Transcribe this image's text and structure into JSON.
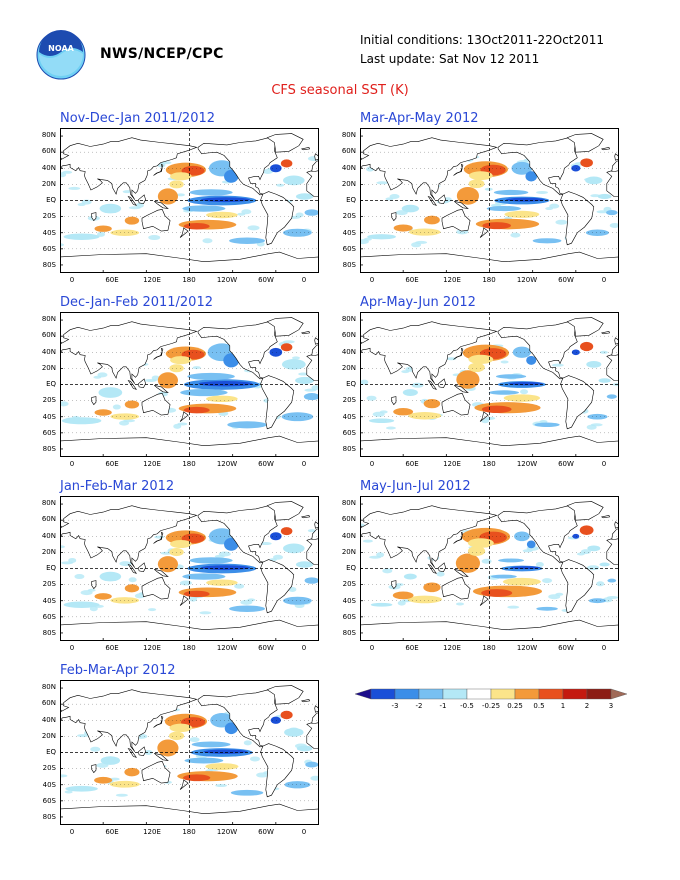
{
  "header": {
    "org": "NWS/NCEP/CPC",
    "initial_conditions": "Initial conditions: 13Oct2011-22Oct2011",
    "last_update": "Last update: Sat Nov 12 2011",
    "title": "CFS seasonal SST (K)",
    "logo_text": "NOAA"
  },
  "panels": [
    {
      "title": "Nov-Dec-Jan 2011/2012"
    },
    {
      "title": "Mar-Apr-May 2012"
    },
    {
      "title": "Dec-Jan-Feb 2011/2012"
    },
    {
      "title": "Apr-May-Jun 2012"
    },
    {
      "title": "Jan-Feb-Mar 2012"
    },
    {
      "title": "May-Jun-Jul 2012"
    },
    {
      "title": "Feb-Mar-Apr 2012"
    }
  ],
  "axes": {
    "lat_labels": [
      "80N",
      "60N",
      "40N",
      "20N",
      "EQ",
      "20S",
      "40S",
      "60S",
      "80S"
    ],
    "lon_labels": [
      "0",
      "60E",
      "120E",
      "180",
      "120W",
      "60W",
      "0"
    ]
  },
  "colorbar": {
    "tick_labels": [
      "-3",
      "-2",
      "-1",
      "-0.5",
      "-0.25",
      "0.25",
      "0.5",
      "1",
      "2",
      "3"
    ],
    "colors": [
      "#1d0e8c",
      "#1a4fd8",
      "#3c8ee8",
      "#78c0f2",
      "#b4e8f6",
      "#ffffff",
      "#fbe48a",
      "#f39a3a",
      "#e8501e",
      "#c41a10",
      "#8c1c14",
      "#a06a58"
    ]
  },
  "colors": {
    "title_red": "#e0201c",
    "panel_title_blue": "#2a48d6",
    "noaa_blue": "#1d4bb0",
    "noaa_cyan": "#6fd0f4"
  }
}
